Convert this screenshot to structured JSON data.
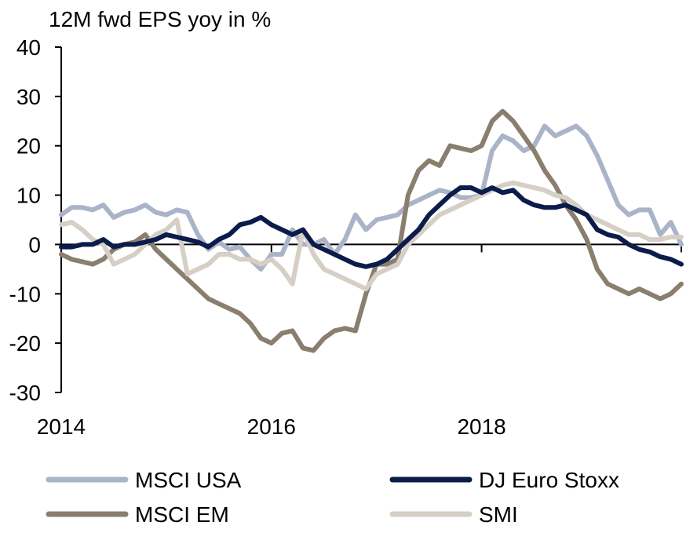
{
  "chart_data": {
    "type": "line",
    "title": "12M fwd EPS yoy in %",
    "xlabel": "",
    "ylabel": "",
    "xlim": [
      2014.0,
      2019.9
    ],
    "ylim": [
      -30,
      40
    ],
    "y_ticks": [
      -30,
      -20,
      -10,
      0,
      10,
      20,
      30,
      40
    ],
    "x_ticks": [
      2014,
      2016,
      2018
    ],
    "x_tick_labels": [
      "2014",
      "2016",
      "2018"
    ],
    "grid": false,
    "legend_position": "bottom",
    "series": [
      {
        "name": "MSCI USA",
        "color": "#aab4c8",
        "points": [
          [
            2014.0,
            6
          ],
          [
            2014.1,
            7.5
          ],
          [
            2014.2,
            7.5
          ],
          [
            2014.3,
            7
          ],
          [
            2014.4,
            8
          ],
          [
            2014.5,
            5.5
          ],
          [
            2014.6,
            6.5
          ],
          [
            2014.7,
            7
          ],
          [
            2014.8,
            8
          ],
          [
            2014.9,
            6.5
          ],
          [
            2015.0,
            6
          ],
          [
            2015.1,
            7
          ],
          [
            2015.2,
            6.5
          ],
          [
            2015.3,
            2
          ],
          [
            2015.4,
            -1
          ],
          [
            2015.5,
            0.5
          ],
          [
            2015.6,
            -1
          ],
          [
            2015.7,
            -0.5
          ],
          [
            2015.8,
            -3
          ],
          [
            2015.9,
            -5
          ],
          [
            2016.0,
            -2
          ],
          [
            2016.1,
            -2
          ],
          [
            2016.2,
            3
          ],
          [
            2016.3,
            0
          ],
          [
            2016.4,
            0
          ],
          [
            2016.5,
            1
          ],
          [
            2016.6,
            -2
          ],
          [
            2016.7,
            1
          ],
          [
            2016.8,
            6
          ],
          [
            2016.9,
            3
          ],
          [
            2017.0,
            5
          ],
          [
            2017.1,
            5.5
          ],
          [
            2017.2,
            6
          ],
          [
            2017.3,
            8
          ],
          [
            2017.4,
            9
          ],
          [
            2017.5,
            10
          ],
          [
            2017.6,
            11
          ],
          [
            2017.7,
            10.5
          ],
          [
            2017.8,
            9.5
          ],
          [
            2017.9,
            9.5
          ],
          [
            2018.0,
            10
          ],
          [
            2018.1,
            19
          ],
          [
            2018.2,
            22
          ],
          [
            2018.3,
            21
          ],
          [
            2018.4,
            19
          ],
          [
            2018.5,
            20
          ],
          [
            2018.6,
            24
          ],
          [
            2018.7,
            22
          ],
          [
            2018.8,
            23
          ],
          [
            2018.9,
            24
          ],
          [
            2019.0,
            22
          ],
          [
            2019.1,
            18
          ],
          [
            2019.2,
            13
          ],
          [
            2019.3,
            8
          ],
          [
            2019.4,
            6
          ],
          [
            2019.5,
            7
          ],
          [
            2019.6,
            7
          ],
          [
            2019.7,
            2
          ],
          [
            2019.8,
            4.5
          ],
          [
            2019.9,
            0
          ]
        ]
      },
      {
        "name": "DJ Euro Stoxx",
        "color": "#0b1c4b",
        "points": [
          [
            2014.0,
            -0.5
          ],
          [
            2014.1,
            -0.5
          ],
          [
            2014.2,
            0
          ],
          [
            2014.3,
            0
          ],
          [
            2014.4,
            1
          ],
          [
            2014.5,
            -0.5
          ],
          [
            2014.6,
            0
          ],
          [
            2014.7,
            0
          ],
          [
            2014.8,
            0.5
          ],
          [
            2014.9,
            1
          ],
          [
            2015.0,
            2
          ],
          [
            2015.1,
            1.5
          ],
          [
            2015.2,
            1
          ],
          [
            2015.3,
            0.5
          ],
          [
            2015.4,
            -0.5
          ],
          [
            2015.5,
            1
          ],
          [
            2015.6,
            2
          ],
          [
            2015.7,
            4
          ],
          [
            2015.8,
            4.5
          ],
          [
            2015.9,
            5.5
          ],
          [
            2016.0,
            4
          ],
          [
            2016.1,
            3
          ],
          [
            2016.2,
            2
          ],
          [
            2016.3,
            3
          ],
          [
            2016.4,
            0
          ],
          [
            2016.5,
            -1
          ],
          [
            2016.6,
            -2
          ],
          [
            2016.7,
            -3
          ],
          [
            2016.8,
            -4
          ],
          [
            2016.9,
            -4.5
          ],
          [
            2017.0,
            -4
          ],
          [
            2017.1,
            -3
          ],
          [
            2017.2,
            -1
          ],
          [
            2017.3,
            1
          ],
          [
            2017.4,
            3
          ],
          [
            2017.5,
            6
          ],
          [
            2017.6,
            8
          ],
          [
            2017.7,
            10
          ],
          [
            2017.8,
            11.5
          ],
          [
            2017.9,
            11.5
          ],
          [
            2018.0,
            10.5
          ],
          [
            2018.1,
            11.5
          ],
          [
            2018.2,
            10.5
          ],
          [
            2018.3,
            11
          ],
          [
            2018.4,
            9
          ],
          [
            2018.5,
            8
          ],
          [
            2018.6,
            7.5
          ],
          [
            2018.7,
            7.5
          ],
          [
            2018.8,
            8
          ],
          [
            2018.9,
            7
          ],
          [
            2019.0,
            6
          ],
          [
            2019.1,
            3
          ],
          [
            2019.2,
            2
          ],
          [
            2019.3,
            1.5
          ],
          [
            2019.4,
            0
          ],
          [
            2019.5,
            -1
          ],
          [
            2019.6,
            -1.5
          ],
          [
            2019.7,
            -2.5
          ],
          [
            2019.8,
            -3
          ],
          [
            2019.9,
            -4
          ]
        ]
      },
      {
        "name": "MSCI EM",
        "color": "#8a7e6f",
        "points": [
          [
            2014.0,
            -2
          ],
          [
            2014.1,
            -3
          ],
          [
            2014.2,
            -3.5
          ],
          [
            2014.3,
            -4
          ],
          [
            2014.4,
            -3
          ],
          [
            2014.5,
            -1
          ],
          [
            2014.6,
            0
          ],
          [
            2014.7,
            0.5
          ],
          [
            2014.8,
            2
          ],
          [
            2014.9,
            -1
          ],
          [
            2015.0,
            -3
          ],
          [
            2015.1,
            -5
          ],
          [
            2015.2,
            -7
          ],
          [
            2015.3,
            -9
          ],
          [
            2015.4,
            -11
          ],
          [
            2015.5,
            -12
          ],
          [
            2015.6,
            -13
          ],
          [
            2015.7,
            -14
          ],
          [
            2015.8,
            -16
          ],
          [
            2015.9,
            -19
          ],
          [
            2016.0,
            -20
          ],
          [
            2016.1,
            -18
          ],
          [
            2016.2,
            -17.5
          ],
          [
            2016.3,
            -21
          ],
          [
            2016.4,
            -21.5
          ],
          [
            2016.5,
            -19
          ],
          [
            2016.6,
            -17.5
          ],
          [
            2016.7,
            -17
          ],
          [
            2016.8,
            -17.5
          ],
          [
            2016.9,
            -10
          ],
          [
            2017.0,
            -4
          ],
          [
            2017.1,
            -4
          ],
          [
            2017.2,
            -3
          ],
          [
            2017.3,
            10
          ],
          [
            2017.4,
            15
          ],
          [
            2017.5,
            17
          ],
          [
            2017.6,
            16
          ],
          [
            2017.7,
            20
          ],
          [
            2017.8,
            19.5
          ],
          [
            2017.9,
            19
          ],
          [
            2018.0,
            20
          ],
          [
            2018.1,
            25
          ],
          [
            2018.2,
            27
          ],
          [
            2018.3,
            25
          ],
          [
            2018.4,
            22
          ],
          [
            2018.5,
            19
          ],
          [
            2018.6,
            15
          ],
          [
            2018.7,
            12
          ],
          [
            2018.8,
            8
          ],
          [
            2018.9,
            5
          ],
          [
            2019.0,
            1
          ],
          [
            2019.1,
            -5
          ],
          [
            2019.2,
            -8
          ],
          [
            2019.3,
            -9
          ],
          [
            2019.4,
            -10
          ],
          [
            2019.5,
            -9
          ],
          [
            2019.6,
            -10
          ],
          [
            2019.7,
            -11
          ],
          [
            2019.8,
            -10
          ],
          [
            2019.9,
            -8
          ]
        ]
      },
      {
        "name": "SMI",
        "color": "#d6cfc6",
        "points": [
          [
            2014.0,
            4
          ],
          [
            2014.1,
            4.5
          ],
          [
            2014.2,
            3
          ],
          [
            2014.3,
            1
          ],
          [
            2014.4,
            0
          ],
          [
            2014.5,
            -4
          ],
          [
            2014.6,
            -3
          ],
          [
            2014.7,
            -2
          ],
          [
            2014.8,
            0
          ],
          [
            2014.9,
            2
          ],
          [
            2015.0,
            3
          ],
          [
            2015.1,
            5
          ],
          [
            2015.2,
            -6
          ],
          [
            2015.3,
            -5
          ],
          [
            2015.4,
            -4
          ],
          [
            2015.5,
            -2
          ],
          [
            2015.6,
            -2
          ],
          [
            2015.7,
            -3
          ],
          [
            2015.8,
            -3
          ],
          [
            2015.9,
            -4
          ],
          [
            2016.0,
            -3
          ],
          [
            2016.1,
            -5
          ],
          [
            2016.2,
            -8
          ],
          [
            2016.3,
            3
          ],
          [
            2016.4,
            -2
          ],
          [
            2016.5,
            -5
          ],
          [
            2016.6,
            -6
          ],
          [
            2016.7,
            -7
          ],
          [
            2016.8,
            -8
          ],
          [
            2016.9,
            -9
          ],
          [
            2017.0,
            -6
          ],
          [
            2017.1,
            -5
          ],
          [
            2017.2,
            -4
          ],
          [
            2017.3,
            0
          ],
          [
            2017.4,
            2
          ],
          [
            2017.5,
            4
          ],
          [
            2017.6,
            6
          ],
          [
            2017.7,
            7
          ],
          [
            2017.8,
            8
          ],
          [
            2017.9,
            9
          ],
          [
            2018.0,
            10
          ],
          [
            2018.1,
            11
          ],
          [
            2018.2,
            12
          ],
          [
            2018.3,
            12.5
          ],
          [
            2018.4,
            12
          ],
          [
            2018.5,
            11.5
          ],
          [
            2018.6,
            11
          ],
          [
            2018.7,
            10
          ],
          [
            2018.8,
            9.5
          ],
          [
            2018.9,
            8
          ],
          [
            2019.0,
            6
          ],
          [
            2019.1,
            5
          ],
          [
            2019.2,
            4
          ],
          [
            2019.3,
            3
          ],
          [
            2019.4,
            2
          ],
          [
            2019.5,
            2
          ],
          [
            2019.6,
            1
          ],
          [
            2019.7,
            1
          ],
          [
            2019.8,
            1.5
          ],
          [
            2019.9,
            1.5
          ]
        ]
      }
    ]
  }
}
